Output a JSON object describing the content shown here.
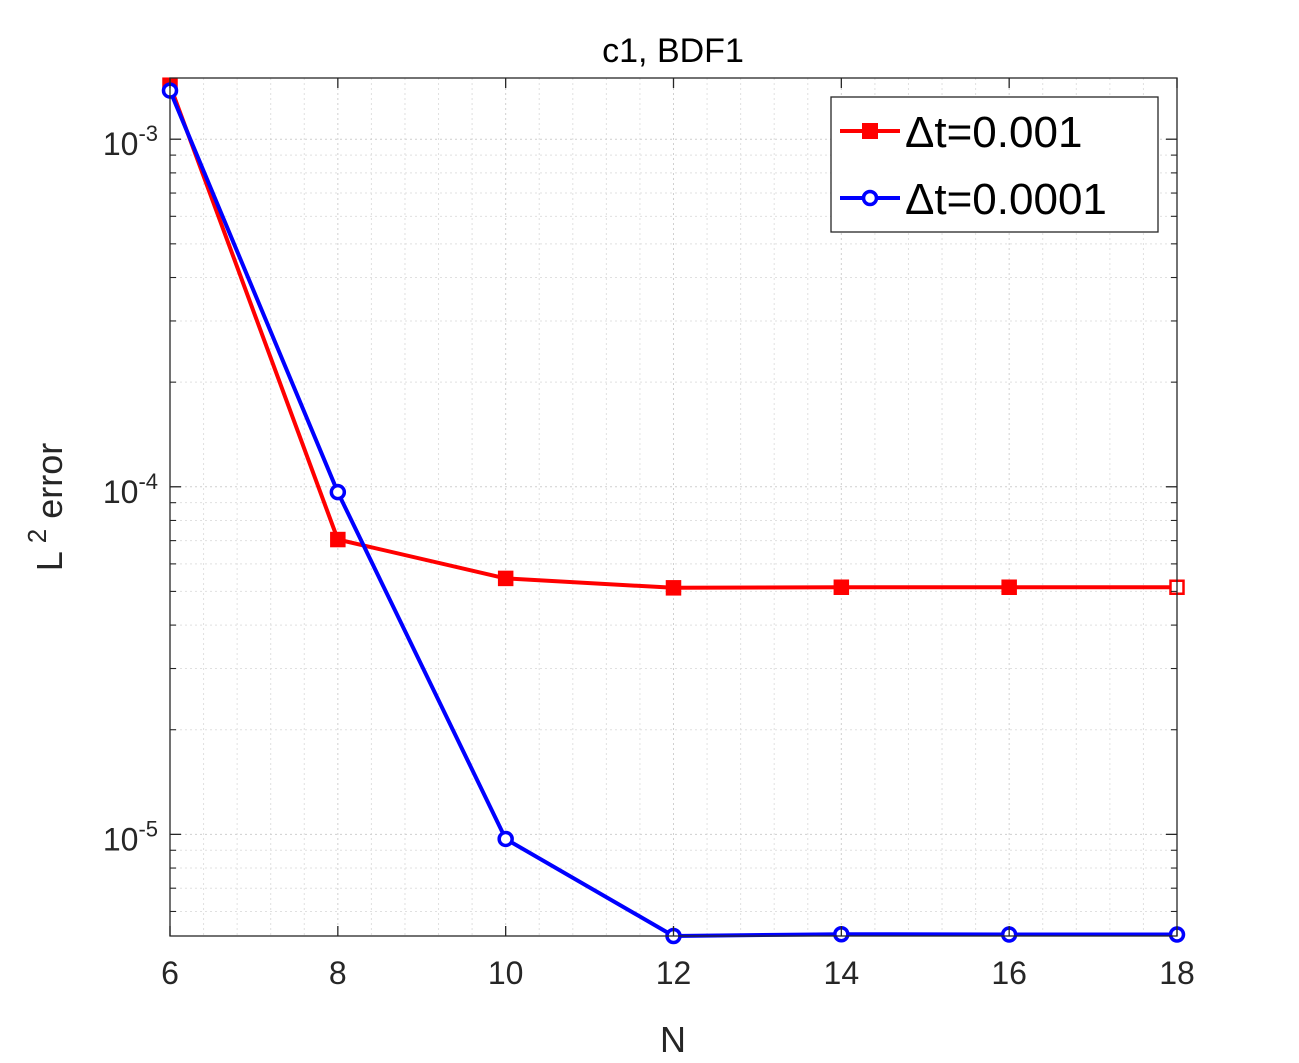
{
  "chart_data": {
    "type": "line",
    "title": "c1, BDF1",
    "xlabel": "N",
    "ylabel": {
      "base": "L",
      "superscript": "2",
      "rest": " error"
    },
    "x": [
      6,
      8,
      10,
      12,
      14,
      16,
      18
    ],
    "xlim": [
      6,
      18
    ],
    "xticks": [
      6,
      8,
      10,
      12,
      14,
      16,
      18
    ],
    "yscale": "log",
    "ylim": [
      5.1e-06,
      0.0015
    ],
    "yticks": [
      {
        "value": 0.001,
        "base": "10",
        "exp": "-3"
      },
      {
        "value": 0.0001,
        "base": "10",
        "exp": "-4"
      },
      {
        "value": 1e-05,
        "base": "10",
        "exp": "-5"
      }
    ],
    "grid": true,
    "minor_grid": true,
    "legend_position": "top-right",
    "series": [
      {
        "name": "Δt=0.001",
        "color": "#ff0000",
        "marker": "square",
        "values": [
          0.00143,
          7.05e-05,
          5.45e-05,
          5.12e-05,
          5.14e-05,
          5.14e-05,
          5.14e-05
        ]
      },
      {
        "name": "Δt=0.0001",
        "color": "#0000ff",
        "marker": "circle",
        "values": [
          0.00138,
          9.65e-05,
          9.7e-06,
          5.1e-06,
          5.16e-06,
          5.15e-06,
          5.15e-06
        ]
      }
    ]
  }
}
